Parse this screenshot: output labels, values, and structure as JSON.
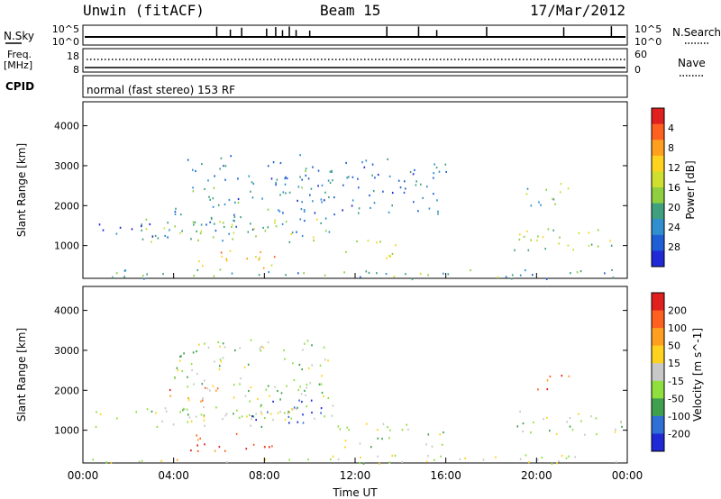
{
  "header": {
    "station": "Unwin (fitACF)",
    "beam": "Beam 15",
    "date": "17/Mar/2012"
  },
  "status": {
    "nsky_label": "N.Sky",
    "nsky_top": "10^5",
    "nsky_bottom": "10^0",
    "nsearch_label": "N.Search",
    "nsearch_top": "10^5",
    "nsearch_bottom": "10^0",
    "freq_label_1": "Freq.",
    "freq_label_2": "[MHz]",
    "freq_top": "18",
    "freq_bottom": "8",
    "nave_label": "Nave",
    "nave_top": "60",
    "nave_bottom": "0",
    "cpid_label": "CPID",
    "cpid_text": "normal (fast stereo) 153 RF"
  },
  "chart_data": [
    {
      "type": "heatmap",
      "name": "power-panel",
      "xlabel": "",
      "ylabel": "Slant Range [km]",
      "xlim": [
        0,
        24
      ],
      "ylim": [
        180,
        4600
      ],
      "x_ticks": [],
      "y_ticks": [
        1000,
        2000,
        3000,
        4000
      ],
      "colorbar": {
        "label": "Power [dB]",
        "ticks": [
          "4",
          "8",
          "12",
          "16",
          "20",
          "24",
          "28"
        ],
        "colors": [
          "#1f2ad6",
          "#1f5fd6",
          "#2f8fcf",
          "#3f9f7f",
          "#8fcf3f",
          "#cfdf2f",
          "#ffd21f",
          "#ff9f1f",
          "#ff5f1f",
          "#e01f1f"
        ]
      },
      "regions": [
        {
          "t0": 4.0,
          "t1": 11.0,
          "r0": 1300,
          "r1": 3300,
          "level": 0.25
        },
        {
          "t0": 2.5,
          "t1": 11.0,
          "r0": 1100,
          "r1": 1700,
          "level": 0.45
        },
        {
          "t0": 5.0,
          "t1": 8.5,
          "r0": 450,
          "r1": 950,
          "level": 0.75
        },
        {
          "t0": 11.5,
          "t1": 14.0,
          "r0": 700,
          "r1": 1200,
          "level": 0.55
        },
        {
          "t0": 11.0,
          "t1": 16.0,
          "r0": 1800,
          "r1": 3200,
          "level": 0.2
        },
        {
          "t0": 0.5,
          "t1": 4.0,
          "r0": 1200,
          "r1": 1600,
          "level": 0.2
        },
        {
          "t0": 19.0,
          "t1": 24.0,
          "r0": 900,
          "r1": 1500,
          "level": 0.5
        },
        {
          "t0": 19.5,
          "t1": 21.5,
          "r0": 1900,
          "r1": 2600,
          "level": 0.4
        },
        {
          "t0": 0.0,
          "t1": 24.0,
          "r0": 180,
          "r1": 420,
          "level": 0.35
        }
      ]
    },
    {
      "type": "heatmap",
      "name": "velocity-panel",
      "xlabel": "Time UT",
      "ylabel": "Slant Range [km]",
      "xlim": [
        0,
        24
      ],
      "ylim": [
        180,
        4600
      ],
      "x_ticks": [
        "00:00",
        "04:00",
        "08:00",
        "12:00",
        "16:00",
        "20:00",
        "00:00"
      ],
      "y_ticks": [
        1000,
        2000,
        3000,
        4000
      ],
      "colorbar": {
        "label": "Velocity [m s^-1]",
        "ticks": [
          "200",
          "100",
          "50",
          "15",
          "-15",
          "-50",
          "-100",
          "-200"
        ],
        "colors": [
          "#1f2ad6",
          "#2f6fd6",
          "#3f9f4f",
          "#8fdf3f",
          "#c8c8c8",
          "#ffd21f",
          "#ff9f1f",
          "#ff5f1f",
          "#e01f1f"
        ]
      },
      "regions": [
        {
          "t0": 4.0,
          "t1": 11.0,
          "r0": 1300,
          "r1": 3300,
          "level": 0.45
        },
        {
          "t0": 0.5,
          "t1": 11.0,
          "r0": 1100,
          "r1": 1600,
          "level": 0.45
        },
        {
          "t0": 4.5,
          "t1": 8.5,
          "r0": 450,
          "r1": 950,
          "level": 0.9
        },
        {
          "t0": 7.0,
          "t1": 10.5,
          "r0": 1200,
          "r1": 1800,
          "level": 0.1
        },
        {
          "t0": 3.5,
          "t1": 6.0,
          "r0": 1700,
          "r1": 2100,
          "level": 0.85
        },
        {
          "t0": 11.0,
          "t1": 16.0,
          "r0": 600,
          "r1": 1200,
          "level": 0.45
        },
        {
          "t0": 19.0,
          "t1": 24.0,
          "r0": 900,
          "r1": 1500,
          "level": 0.45
        },
        {
          "t0": 20.0,
          "t1": 21.5,
          "r0": 1900,
          "r1": 2400,
          "level": 0.8
        },
        {
          "t0": 0.0,
          "t1": 24.0,
          "r0": 180,
          "r1": 400,
          "level": 0.5
        }
      ]
    }
  ]
}
